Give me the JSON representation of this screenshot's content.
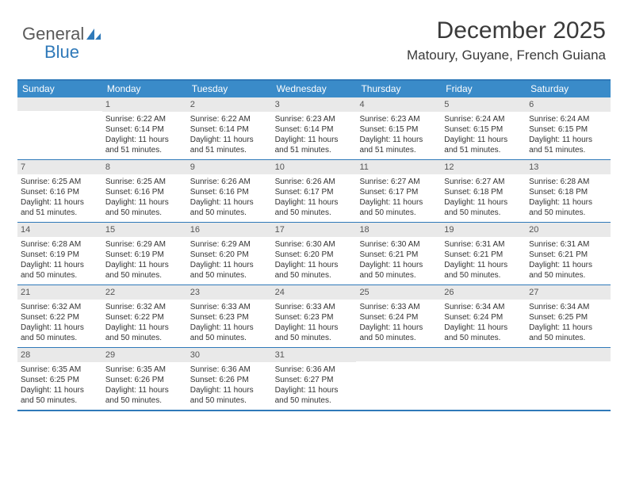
{
  "logo": {
    "line1": "General",
    "line2": "Blue"
  },
  "title": "December 2025",
  "subtitle": "Matoury, Guyane, French Guiana",
  "columns": [
    "Sunday",
    "Monday",
    "Tuesday",
    "Wednesday",
    "Thursday",
    "Friday",
    "Saturday"
  ],
  "colors": {
    "header_bg": "#3a8bc9",
    "header_text": "#ffffff",
    "border": "#2f79b9",
    "daynum_bg": "#e9e9e9",
    "text": "#333333"
  },
  "weeks": [
    [
      {
        "num": "",
        "lines": []
      },
      {
        "num": "1",
        "lines": [
          "Sunrise: 6:22 AM",
          "Sunset: 6:14 PM",
          "Daylight: 11 hours",
          "and 51 minutes."
        ]
      },
      {
        "num": "2",
        "lines": [
          "Sunrise: 6:22 AM",
          "Sunset: 6:14 PM",
          "Daylight: 11 hours",
          "and 51 minutes."
        ]
      },
      {
        "num": "3",
        "lines": [
          "Sunrise: 6:23 AM",
          "Sunset: 6:14 PM",
          "Daylight: 11 hours",
          "and 51 minutes."
        ]
      },
      {
        "num": "4",
        "lines": [
          "Sunrise: 6:23 AM",
          "Sunset: 6:15 PM",
          "Daylight: 11 hours",
          "and 51 minutes."
        ]
      },
      {
        "num": "5",
        "lines": [
          "Sunrise: 6:24 AM",
          "Sunset: 6:15 PM",
          "Daylight: 11 hours",
          "and 51 minutes."
        ]
      },
      {
        "num": "6",
        "lines": [
          "Sunrise: 6:24 AM",
          "Sunset: 6:15 PM",
          "Daylight: 11 hours",
          "and 51 minutes."
        ]
      }
    ],
    [
      {
        "num": "7",
        "lines": [
          "Sunrise: 6:25 AM",
          "Sunset: 6:16 PM",
          "Daylight: 11 hours",
          "and 51 minutes."
        ]
      },
      {
        "num": "8",
        "lines": [
          "Sunrise: 6:25 AM",
          "Sunset: 6:16 PM",
          "Daylight: 11 hours",
          "and 50 minutes."
        ]
      },
      {
        "num": "9",
        "lines": [
          "Sunrise: 6:26 AM",
          "Sunset: 6:16 PM",
          "Daylight: 11 hours",
          "and 50 minutes."
        ]
      },
      {
        "num": "10",
        "lines": [
          "Sunrise: 6:26 AM",
          "Sunset: 6:17 PM",
          "Daylight: 11 hours",
          "and 50 minutes."
        ]
      },
      {
        "num": "11",
        "lines": [
          "Sunrise: 6:27 AM",
          "Sunset: 6:17 PM",
          "Daylight: 11 hours",
          "and 50 minutes."
        ]
      },
      {
        "num": "12",
        "lines": [
          "Sunrise: 6:27 AM",
          "Sunset: 6:18 PM",
          "Daylight: 11 hours",
          "and 50 minutes."
        ]
      },
      {
        "num": "13",
        "lines": [
          "Sunrise: 6:28 AM",
          "Sunset: 6:18 PM",
          "Daylight: 11 hours",
          "and 50 minutes."
        ]
      }
    ],
    [
      {
        "num": "14",
        "lines": [
          "Sunrise: 6:28 AM",
          "Sunset: 6:19 PM",
          "Daylight: 11 hours",
          "and 50 minutes."
        ]
      },
      {
        "num": "15",
        "lines": [
          "Sunrise: 6:29 AM",
          "Sunset: 6:19 PM",
          "Daylight: 11 hours",
          "and 50 minutes."
        ]
      },
      {
        "num": "16",
        "lines": [
          "Sunrise: 6:29 AM",
          "Sunset: 6:20 PM",
          "Daylight: 11 hours",
          "and 50 minutes."
        ]
      },
      {
        "num": "17",
        "lines": [
          "Sunrise: 6:30 AM",
          "Sunset: 6:20 PM",
          "Daylight: 11 hours",
          "and 50 minutes."
        ]
      },
      {
        "num": "18",
        "lines": [
          "Sunrise: 6:30 AM",
          "Sunset: 6:21 PM",
          "Daylight: 11 hours",
          "and 50 minutes."
        ]
      },
      {
        "num": "19",
        "lines": [
          "Sunrise: 6:31 AM",
          "Sunset: 6:21 PM",
          "Daylight: 11 hours",
          "and 50 minutes."
        ]
      },
      {
        "num": "20",
        "lines": [
          "Sunrise: 6:31 AM",
          "Sunset: 6:21 PM",
          "Daylight: 11 hours",
          "and 50 minutes."
        ]
      }
    ],
    [
      {
        "num": "21",
        "lines": [
          "Sunrise: 6:32 AM",
          "Sunset: 6:22 PM",
          "Daylight: 11 hours",
          "and 50 minutes."
        ]
      },
      {
        "num": "22",
        "lines": [
          "Sunrise: 6:32 AM",
          "Sunset: 6:22 PM",
          "Daylight: 11 hours",
          "and 50 minutes."
        ]
      },
      {
        "num": "23",
        "lines": [
          "Sunrise: 6:33 AM",
          "Sunset: 6:23 PM",
          "Daylight: 11 hours",
          "and 50 minutes."
        ]
      },
      {
        "num": "24",
        "lines": [
          "Sunrise: 6:33 AM",
          "Sunset: 6:23 PM",
          "Daylight: 11 hours",
          "and 50 minutes."
        ]
      },
      {
        "num": "25",
        "lines": [
          "Sunrise: 6:33 AM",
          "Sunset: 6:24 PM",
          "Daylight: 11 hours",
          "and 50 minutes."
        ]
      },
      {
        "num": "26",
        "lines": [
          "Sunrise: 6:34 AM",
          "Sunset: 6:24 PM",
          "Daylight: 11 hours",
          "and 50 minutes."
        ]
      },
      {
        "num": "27",
        "lines": [
          "Sunrise: 6:34 AM",
          "Sunset: 6:25 PM",
          "Daylight: 11 hours",
          "and 50 minutes."
        ]
      }
    ],
    [
      {
        "num": "28",
        "lines": [
          "Sunrise: 6:35 AM",
          "Sunset: 6:25 PM",
          "Daylight: 11 hours",
          "and 50 minutes."
        ]
      },
      {
        "num": "29",
        "lines": [
          "Sunrise: 6:35 AM",
          "Sunset: 6:26 PM",
          "Daylight: 11 hours",
          "and 50 minutes."
        ]
      },
      {
        "num": "30",
        "lines": [
          "Sunrise: 6:36 AM",
          "Sunset: 6:26 PM",
          "Daylight: 11 hours",
          "and 50 minutes."
        ]
      },
      {
        "num": "31",
        "lines": [
          "Sunrise: 6:36 AM",
          "Sunset: 6:27 PM",
          "Daylight: 11 hours",
          "and 50 minutes."
        ]
      },
      {
        "num": "",
        "lines": []
      },
      {
        "num": "",
        "lines": []
      },
      {
        "num": "",
        "lines": []
      }
    ]
  ]
}
